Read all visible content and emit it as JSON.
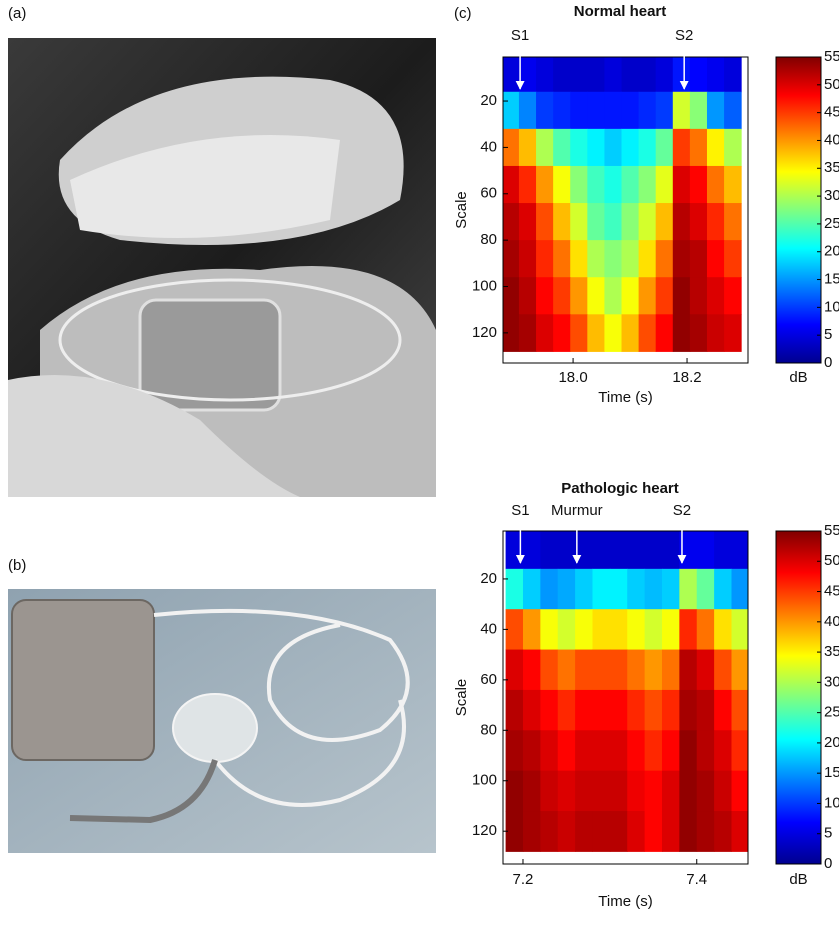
{
  "panel_labels": [
    "(a)",
    "(b)",
    "(c)"
  ],
  "chart_data": [
    {
      "type": "heatmap",
      "title": "Normal heart",
      "xlabel": "Time (s)",
      "ylabel": "Scale",
      "x": [
        17.89,
        17.92,
        17.95,
        17.98,
        18.01,
        18.04,
        18.07,
        18.1,
        18.13,
        18.16,
        18.19,
        18.22,
        18.25,
        18.28
      ],
      "y": [
        8,
        24,
        40,
        56,
        72,
        88,
        104,
        120
      ],
      "z": [
        [
          5,
          6,
          5,
          4,
          4,
          4,
          5,
          4,
          4,
          5,
          8,
          7,
          6,
          5
        ],
        [
          18,
          14,
          10,
          9,
          8,
          8,
          8,
          8,
          9,
          10,
          32,
          28,
          15,
          12
        ],
        [
          42,
          38,
          30,
          25,
          22,
          20,
          18,
          20,
          22,
          26,
          45,
          42,
          35,
          30
        ],
        [
          50,
          46,
          40,
          34,
          28,
          24,
          22,
          25,
          28,
          33,
          50,
          48,
          42,
          38
        ],
        [
          52,
          50,
          44,
          38,
          32,
          26,
          24,
          28,
          32,
          38,
          52,
          50,
          46,
          42
        ],
        [
          53,
          51,
          46,
          42,
          36,
          30,
          28,
          30,
          36,
          42,
          53,
          52,
          48,
          45
        ],
        [
          54,
          52,
          48,
          45,
          40,
          34,
          30,
          34,
          40,
          45,
          54,
          52,
          50,
          48
        ],
        [
          54,
          53,
          50,
          48,
          44,
          38,
          34,
          38,
          44,
          48,
          54,
          53,
          51,
          50
        ]
      ],
      "xlim": [
        17.877,
        18.307
      ],
      "ylim": [
        1,
        133
      ],
      "y_inverted": true,
      "xticks": [
        {
          "value": 18.0,
          "label": "18.0"
        },
        18.2
      ],
      "yticks": [
        20,
        40,
        60,
        80,
        100,
        120
      ],
      "colorbar": {
        "zlim": [
          0,
          55
        ],
        "ticks": [
          0,
          5,
          10,
          15,
          20,
          25,
          30,
          35,
          40,
          45,
          50,
          55
        ],
        "label": "dB",
        "colormap": "jet"
      },
      "annotations": [
        {
          "text": "S1",
          "x": 17.907
        },
        {
          "text": "S2",
          "x": 18.195
        }
      ]
    },
    {
      "type": "heatmap",
      "title": "Pathologic heart",
      "xlabel": "Time (s)",
      "ylabel": "Scale",
      "x": [
        7.19,
        7.21,
        7.23,
        7.25,
        7.27,
        7.29,
        7.31,
        7.33,
        7.35,
        7.37,
        7.39,
        7.41,
        7.43,
        7.45
      ],
      "y": [
        8,
        24,
        40,
        56,
        72,
        88,
        104,
        120
      ],
      "z": [
        [
          5,
          5,
          4,
          4,
          4,
          4,
          4,
          4,
          4,
          4,
          6,
          6,
          5,
          5
        ],
        [
          22,
          18,
          15,
          16,
          18,
          20,
          20,
          18,
          17,
          18,
          30,
          26,
          18,
          15
        ],
        [
          44,
          40,
          34,
          32,
          34,
          36,
          36,
          34,
          32,
          34,
          46,
          42,
          36,
          32
        ],
        [
          50,
          48,
          44,
          42,
          44,
          44,
          44,
          42,
          40,
          42,
          52,
          50,
          44,
          40
        ],
        [
          52,
          50,
          48,
          46,
          48,
          48,
          48,
          46,
          44,
          46,
          53,
          52,
          48,
          44
        ],
        [
          53,
          52,
          50,
          48,
          50,
          50,
          50,
          48,
          46,
          48,
          54,
          52,
          50,
          46
        ],
        [
          54,
          53,
          51,
          50,
          51,
          51,
          51,
          49,
          48,
          50,
          54,
          53,
          51,
          48
        ],
        [
          54,
          53,
          52,
          51,
          52,
          52,
          52,
          50,
          48,
          50,
          54,
          53,
          52,
          50
        ]
      ],
      "xlim": [
        7.177,
        7.459
      ],
      "ylim": [
        1,
        133
      ],
      "y_inverted": true,
      "xticks": [
        7.2,
        7.4
      ],
      "yticks": [
        20,
        40,
        60,
        80,
        100,
        120
      ],
      "colorbar": {
        "zlim": [
          0,
          55
        ],
        "ticks": [
          0,
          5,
          10,
          15,
          20,
          25,
          30,
          35,
          40,
          45,
          50,
          55
        ],
        "label": "dB",
        "colormap": "jet"
      },
      "annotations": [
        {
          "text": "S1",
          "x": 7.197
        },
        {
          "text": "Murmur",
          "x": 7.262
        },
        {
          "text": "S2",
          "x": 7.383
        }
      ]
    }
  ]
}
